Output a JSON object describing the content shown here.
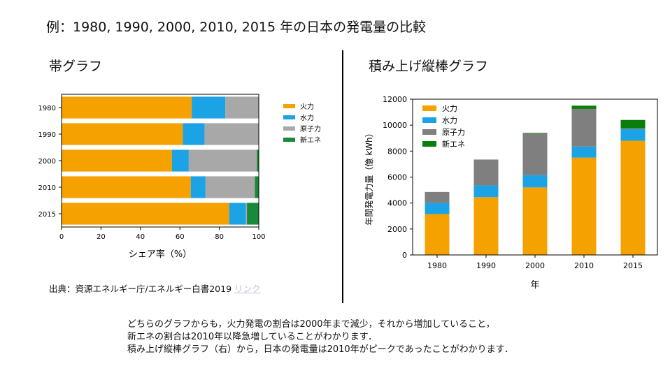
{
  "page_title": "例：1980, 1990, 2000, 2010, 2015 年の日本の発電量の比較",
  "left_panel": {
    "title": "帯グラフ"
  },
  "right_panel": {
    "title": "積み上げ縦棒グラフ"
  },
  "source": {
    "text": "出典：資源エネルギー庁/エネルギー白書2019",
    "link_label": "リンク"
  },
  "summary": [
    "どちらのグラフからも，火力発電の割合は2000年まで減少，それから増加していること，",
    "新エネの割合は2010年以降急増していることがわかります．",
    "積み上げ縦棒グラフ（右）から，日本の発電量は2010年がピークであったことがわかります．"
  ],
  "colors": {
    "thermal": "#f5a100",
    "hydro": "#1ca3e6",
    "nuclear": "#a8a8a8",
    "nuclear_dark": "#7f7f7f",
    "renewable": "#1a8a3a",
    "renewable_dark": "#0a7d0a"
  },
  "chart_data": [
    {
      "type": "bar",
      "orientation": "horizontal",
      "stacked": true,
      "categories": [
        "1980",
        "1990",
        "2000",
        "2010",
        "2015"
      ],
      "series": [
        {
          "name": "火力",
          "values": [
            66,
            61.5,
            56,
            65.5,
            85
          ]
        },
        {
          "name": "水力",
          "values": [
            17,
            11,
            8.5,
            7.5,
            8.5
          ]
        },
        {
          "name": "原子力",
          "values": [
            17,
            27.5,
            34.5,
            25,
            0.5
          ]
        },
        {
          "name": "新エネ",
          "values": [
            0,
            0,
            1,
            2,
            6
          ]
        }
      ],
      "xlabel": "シェア率（%）",
      "xlim": [
        0,
        100
      ],
      "xticks": [
        0,
        20,
        40,
        60,
        80,
        100
      ],
      "legend": "right",
      "grid": false
    },
    {
      "type": "bar",
      "orientation": "vertical",
      "stacked": true,
      "categories": [
        "1980",
        "1990",
        "2000",
        "2010",
        "2015"
      ],
      "series": [
        {
          "name": "火力",
          "values": [
            3150,
            4450,
            5200,
            7500,
            8800
          ]
        },
        {
          "name": "水力",
          "values": [
            850,
            900,
            950,
            850,
            900
          ]
        },
        {
          "name": "原子力",
          "values": [
            850,
            2000,
            3200,
            2900,
            50
          ]
        },
        {
          "name": "新エネ",
          "values": [
            0,
            0,
            50,
            250,
            650
          ]
        }
      ],
      "xlabel": "年",
      "ylabel": "年間発電力量（億 kWh）",
      "ylim": [
        0,
        12000
      ],
      "yticks": [
        0,
        2000,
        4000,
        6000,
        8000,
        10000,
        12000
      ],
      "legend": "top-left",
      "grid": false
    }
  ]
}
